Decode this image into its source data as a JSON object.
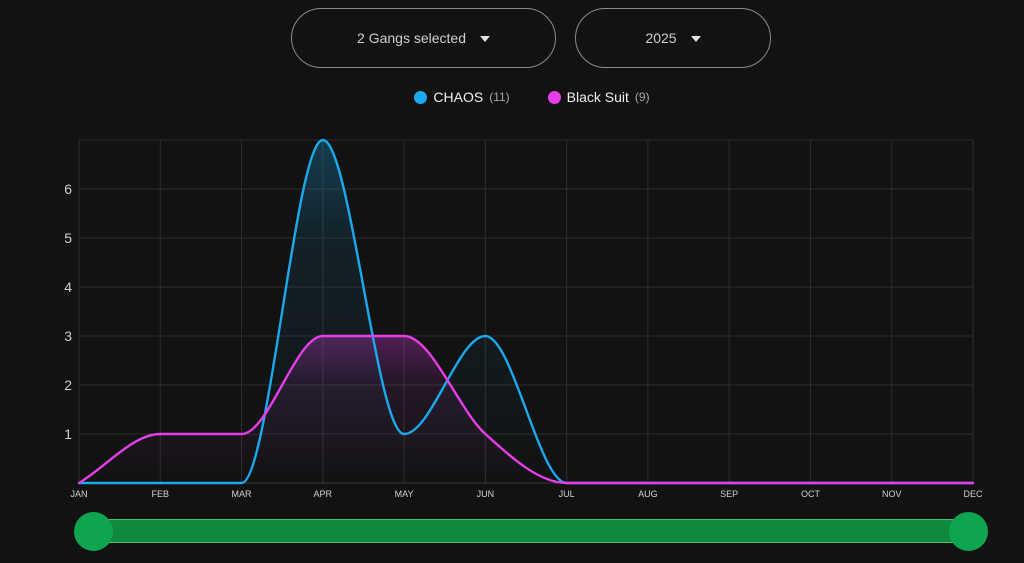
{
  "filters": {
    "gangs_label": "2 Gangs selected",
    "year_label": "2025"
  },
  "colors": {
    "chaos": "#1aa9ec",
    "blacksuit": "#e53ee8",
    "slider": "#0fa44f"
  },
  "chart_data": {
    "type": "area",
    "categories": [
      "JAN",
      "FEB",
      "MAR",
      "APR",
      "MAY",
      "JUN",
      "JUL",
      "AUG",
      "SEP",
      "OCT",
      "NOV",
      "DEC"
    ],
    "series": [
      {
        "name": "CHAOS",
        "count": "(11)",
        "values": [
          0,
          0,
          0,
          7,
          1,
          3,
          0,
          0,
          0,
          0,
          0,
          0
        ]
      },
      {
        "name": "Black Suit",
        "count": "(9)",
        "values": [
          0,
          1,
          1,
          3,
          3,
          1,
          0,
          0,
          0,
          0,
          0,
          0
        ]
      }
    ],
    "yticks": [
      "1",
      "2",
      "3",
      "4",
      "5",
      "6"
    ],
    "ylim": [
      0,
      7
    ],
    "grid": true,
    "legend": "top-center",
    "title": "",
    "xlabel": "",
    "ylabel": ""
  }
}
